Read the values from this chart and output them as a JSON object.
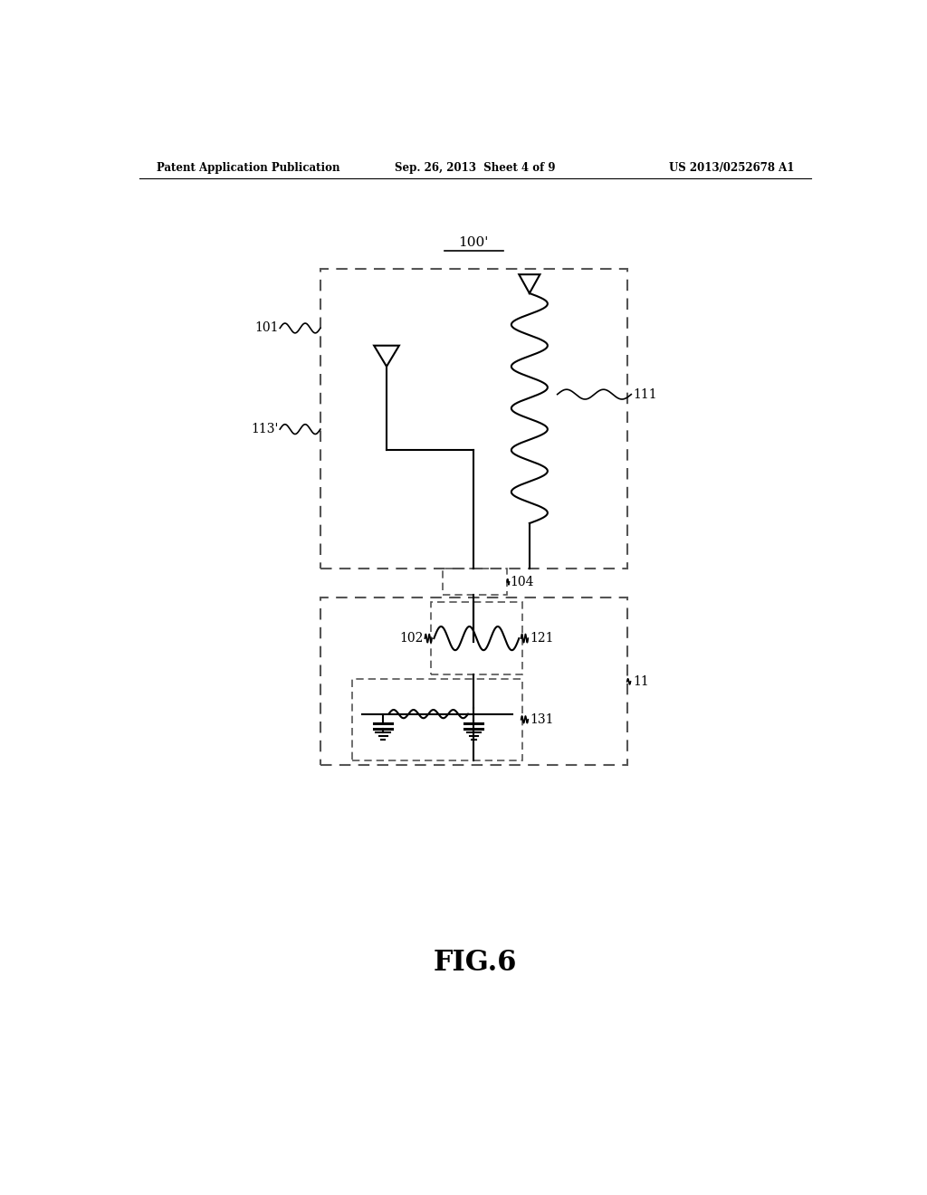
{
  "bg_color": "#ffffff",
  "line_color": "#000000",
  "dashed_color": "#555555",
  "header_left": "Patent Application Publication",
  "header_mid": "Sep. 26, 2013  Sheet 4 of 9",
  "header_right": "US 2013/0252678 A1",
  "fig_label": "FIG.6",
  "label_100": "100'",
  "label_101": "101",
  "label_111": "111",
  "label_113": "113'",
  "label_104": "104",
  "label_102": "102",
  "label_121": "121",
  "label_11": "11",
  "label_131": "131"
}
